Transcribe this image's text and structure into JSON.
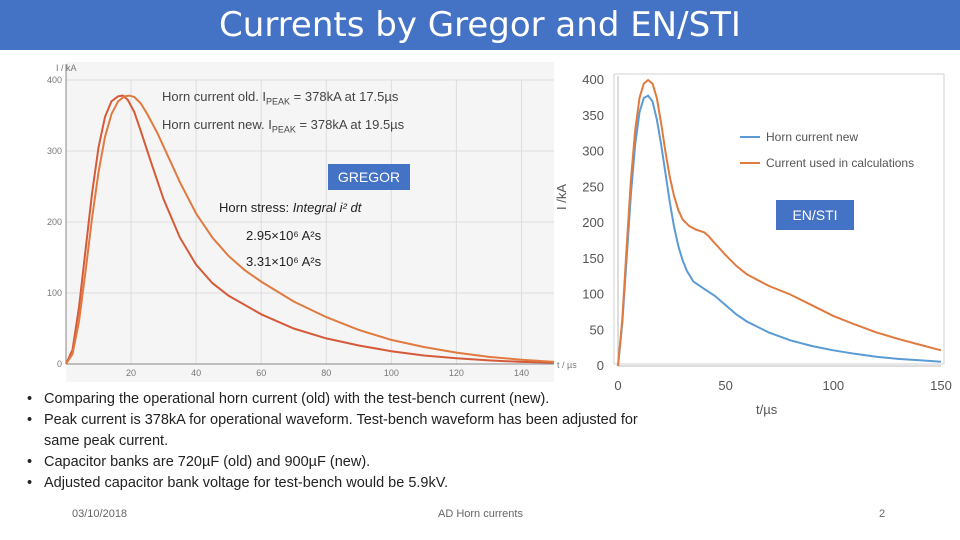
{
  "title": "Currents by Gregor and EN/STI",
  "gregor": {
    "box_label": "GREGOR",
    "ann_old": "Horn current old. I",
    "ann_old_sub": "PEAK",
    "ann_old_rest": " = 378kA at 17.5µs",
    "ann_new": "Horn current new. I",
    "ann_new_sub": "PEAK",
    "ann_new_rest": " = 378kA at 19.5µs",
    "stress_label": "Horn stress: ",
    "stress_formula": "Integral i² dt",
    "stress_old": "2.95×10⁶ A²s",
    "stress_new": "3.31×10⁶ A²s"
  },
  "ensti": {
    "box_label": "EN/STI"
  },
  "colors": {
    "title_bar": "#4472c4",
    "orange": "#e07a3f",
    "red": "#d55a3a",
    "blue": "#5b9bd5"
  },
  "chart_data": [
    {
      "type": "line",
      "title": "",
      "xlabel": "t / µs",
      "ylabel": "I / kA",
      "xlim": [
        0,
        150
      ],
      "ylim": [
        0,
        400
      ],
      "x_ticks": [
        20,
        40,
        60,
        80,
        100,
        120,
        140
      ],
      "y_ticks": [
        0,
        100,
        200,
        300,
        400
      ],
      "grid": true,
      "series": [
        {
          "name": "Horn current old",
          "color": "red",
          "x": [
            0,
            2,
            4,
            6,
            8,
            10,
            12,
            14,
            16,
            17.5,
            19,
            21,
            23,
            26,
            30,
            35,
            40,
            45,
            50,
            60,
            70,
            80,
            90,
            100,
            110,
            120,
            130,
            140,
            150
          ],
          "y": [
            0,
            20,
            80,
            160,
            240,
            305,
            348,
            370,
            377,
            378,
            372,
            355,
            328,
            286,
            232,
            178,
            140,
            114,
            96,
            70,
            50,
            36,
            26,
            18,
            12,
            8,
            5,
            3,
            2
          ]
        },
        {
          "name": "Horn current new",
          "color": "orange",
          "x": [
            0,
            2,
            4,
            6,
            8,
            10,
            12,
            14,
            16,
            18,
            19.5,
            21,
            23,
            25,
            28,
            31,
            35,
            40,
            45,
            50,
            55,
            60,
            70,
            80,
            90,
            100,
            110,
            120,
            130,
            140,
            150
          ],
          "y": [
            0,
            14,
            60,
            130,
            205,
            270,
            320,
            352,
            370,
            377,
            378,
            376,
            367,
            352,
            326,
            296,
            256,
            212,
            178,
            152,
            132,
            116,
            88,
            66,
            48,
            34,
            24,
            16,
            10,
            6,
            3
          ]
        }
      ]
    },
    {
      "type": "line",
      "title": "",
      "xlabel": "t/µs",
      "ylabel": "I /kA",
      "xlim": [
        0,
        150
      ],
      "ylim": [
        0,
        400
      ],
      "x_ticks": [
        0,
        50,
        100,
        150
      ],
      "y_ticks": [
        0,
        50,
        100,
        150,
        200,
        250,
        300,
        350,
        400
      ],
      "grid": false,
      "legend": "top-right",
      "series": [
        {
          "name": "Horn current new",
          "color": "blue",
          "x": [
            0,
            2,
            4,
            6,
            8,
            10,
            12,
            14,
            16,
            18,
            20,
            22,
            24,
            26,
            28,
            30,
            32,
            35,
            40,
            45,
            50,
            55,
            60,
            70,
            80,
            90,
            100,
            110,
            120,
            130,
            140,
            150
          ],
          "y": [
            0,
            60,
            150,
            240,
            310,
            355,
            375,
            378,
            370,
            345,
            310,
            270,
            230,
            195,
            168,
            148,
            133,
            118,
            108,
            98,
            85,
            72,
            62,
            47,
            36,
            28,
            22,
            17,
            13,
            10,
            8,
            6
          ]
        },
        {
          "name": "Current used in calculations",
          "color": "orange",
          "x": [
            0,
            2,
            4,
            6,
            8,
            10,
            12,
            14,
            16,
            18,
            20,
            22,
            24,
            26,
            28,
            30,
            33,
            36,
            40,
            42,
            44,
            47,
            50,
            55,
            60,
            70,
            80,
            90,
            100,
            110,
            120,
            130,
            140,
            150
          ],
          "y": [
            0,
            65,
            165,
            260,
            330,
            375,
            395,
            400,
            395,
            375,
            340,
            300,
            265,
            238,
            218,
            205,
            196,
            191,
            187,
            182,
            175,
            165,
            155,
            140,
            128,
            112,
            100,
            85,
            70,
            58,
            47,
            38,
            30,
            22
          ]
        }
      ]
    }
  ],
  "bullets": [
    "Comparing the operational horn current (old) with the test-bench current (new).",
    "Peak current is 378kA for operational waveform. Test-bench waveform has been adjusted for same peak current.",
    "Capacitor banks are 720µF (old) and 900µF (new).",
    "Adjusted capacitor bank voltage for test-bench would be 5.9kV."
  ],
  "footer": {
    "date": "03/10/2018",
    "center": "AD Horn currents",
    "page": "2"
  }
}
